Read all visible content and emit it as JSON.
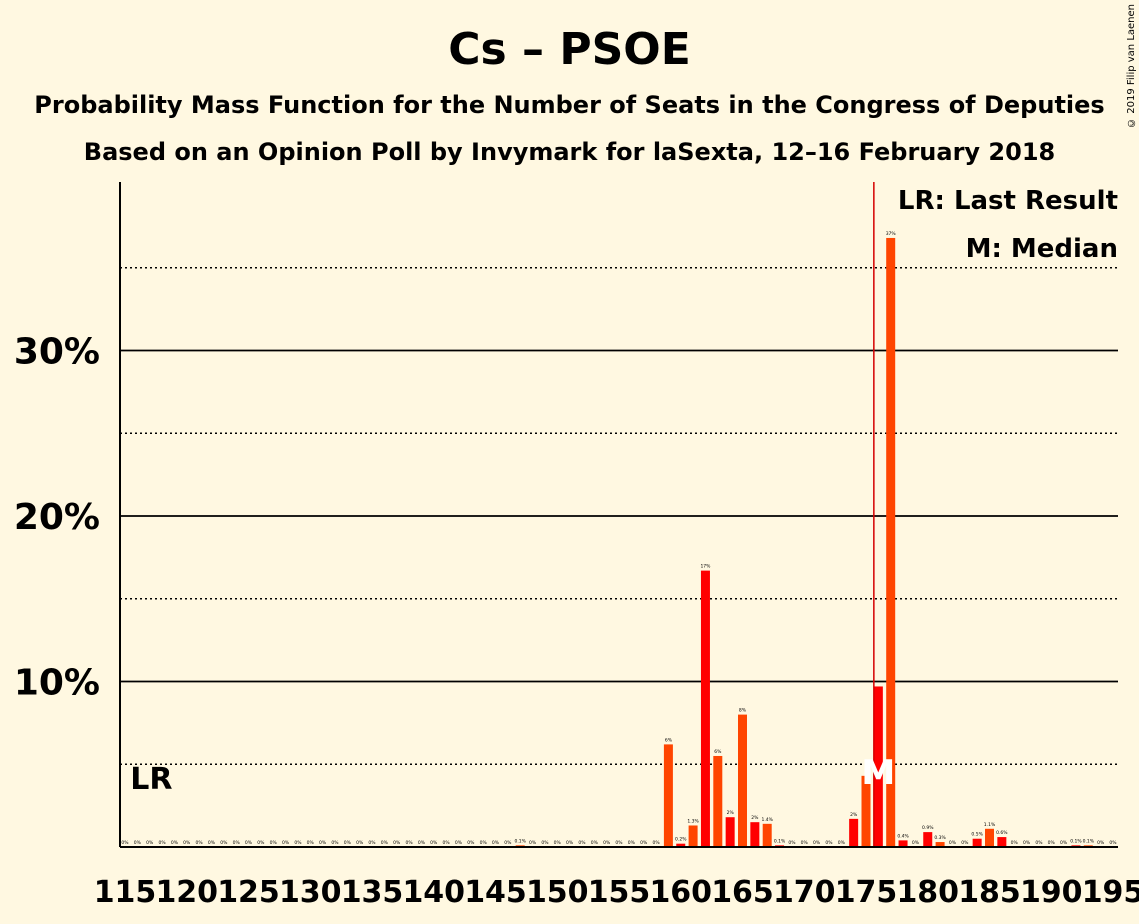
{
  "title": "Cs – PSOE",
  "subtitle1": "Probability Mass Function for the Number of Seats in the Congress of Deputies",
  "subtitle2": "Based on an Opinion Poll by Invymark for laSexta, 12–16 February 2018",
  "copyright": "© 2019 Filip van Laenen",
  "legend": {
    "lr": "LR: Last Result",
    "m": "M: Median"
  },
  "markers": {
    "lr_label": "LR",
    "lr_seat": 116,
    "median_label": "M",
    "median_seat": 176
  },
  "colors": {
    "bar_a": "#ff0000",
    "bar_b": "#ff4500",
    "lr_line": "#d40000",
    "background": "#fff8e1"
  },
  "chart_data": {
    "type": "bar",
    "xlabel": "",
    "ylabel": "",
    "ylim": [
      0,
      40
    ],
    "y_ticks": [
      10,
      20,
      30
    ],
    "y_tick_labels": [
      "10%",
      "20%",
      "30%"
    ],
    "x_tick_labels": [
      "115",
      "120",
      "125",
      "130",
      "135",
      "140",
      "145",
      "150",
      "155",
      "160",
      "165",
      "170",
      "175",
      "180",
      "185",
      "190",
      "195"
    ],
    "x": [
      115,
      116,
      117,
      118,
      119,
      120,
      121,
      122,
      123,
      124,
      125,
      126,
      127,
      128,
      129,
      130,
      131,
      132,
      133,
      134,
      135,
      136,
      137,
      138,
      139,
      140,
      141,
      142,
      143,
      144,
      145,
      146,
      147,
      148,
      149,
      150,
      151,
      152,
      153,
      154,
      155,
      156,
      157,
      158,
      159,
      160,
      161,
      162,
      163,
      164,
      165,
      166,
      167,
      168,
      169,
      170,
      171,
      172,
      173,
      174,
      175,
      176,
      177,
      178,
      179,
      180,
      181,
      182,
      183,
      184,
      185,
      186,
      187,
      188,
      189,
      190,
      191,
      192,
      193,
      194,
      195
    ],
    "values": [
      0,
      0,
      0,
      0,
      0,
      0,
      0,
      0,
      0,
      0,
      0,
      0,
      0,
      0,
      0,
      0,
      0,
      0,
      0,
      0,
      0,
      0,
      0,
      0,
      0,
      0,
      0,
      0,
      0,
      0,
      0,
      0,
      0.1,
      0,
      0,
      0,
      0,
      0,
      0,
      0,
      0,
      0,
      0,
      0,
      6.2,
      0.2,
      1.3,
      16.7,
      5.5,
      1.8,
      8,
      1.5,
      1.4,
      0.1,
      0,
      0,
      0,
      0,
      0,
      1.7,
      4.3,
      9.7,
      36.8,
      0.4,
      0,
      0.9,
      0.3,
      0,
      0,
      0.5,
      1.1,
      0.6,
      0,
      0,
      0,
      0,
      0,
      0.1,
      0.1,
      0,
      0
    ],
    "value_labels": [
      "0%",
      "0%",
      "0%",
      "0%",
      "0%",
      "0%",
      "0%",
      "0%",
      "0%",
      "0%",
      "0%",
      "0%",
      "0%",
      "0%",
      "0%",
      "0%",
      "0%",
      "0%",
      "0%",
      "0%",
      "0%",
      "0%",
      "0%",
      "0%",
      "0%",
      "0%",
      "0%",
      "0%",
      "0%",
      "0%",
      "0%",
      "0%",
      "0.1%",
      "0%",
      "0%",
      "0%",
      "0%",
      "0%",
      "0%",
      "0%",
      "0%",
      "0%",
      "0%",
      "0%",
      "6%",
      "0.2%",
      "1.3%",
      "17%",
      "6%",
      "2%",
      "8%",
      "2%",
      "1.4%",
      "0.1%",
      "0%",
      "0%",
      "0%",
      "0%",
      "0%",
      "2%",
      "",
      "",
      "37%",
      "0.4%",
      "0%",
      "0.9%",
      "0.3%",
      "0%",
      "0%",
      "0.5%",
      "1.1%",
      "0.6%",
      "0%",
      "0%",
      "0%",
      "0%",
      "0%",
      "0.1%",
      "0.1%",
      "0%",
      "0%"
    ]
  }
}
